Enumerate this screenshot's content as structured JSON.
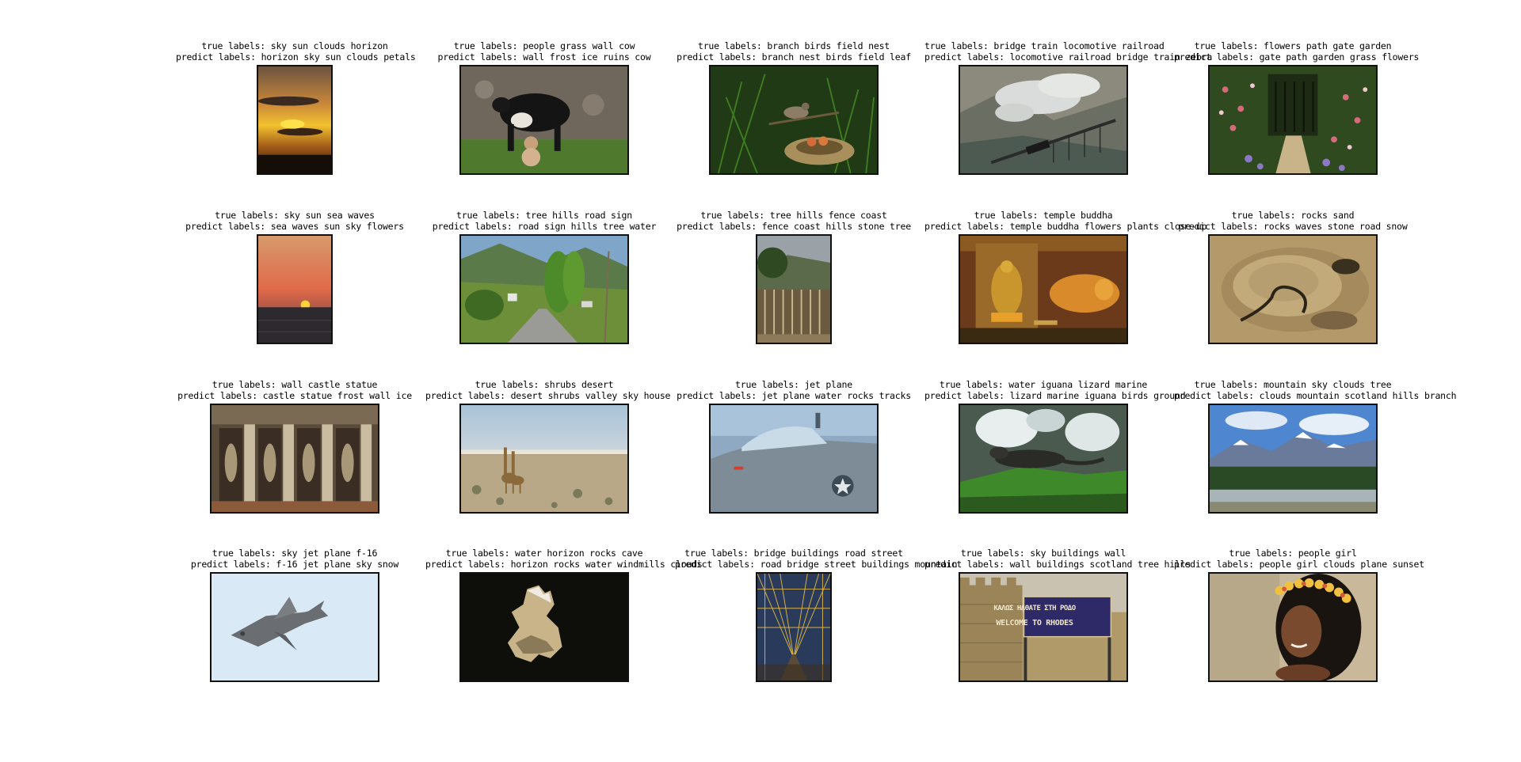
{
  "figure": {
    "cells": [
      {
        "true_labels": "true labels: sky sun clouds horizon",
        "predict_labels": "predict labels: horizon sky sun clouds petals",
        "scene": "sunset-clouds-scene"
      },
      {
        "true_labels": "true labels: people grass wall cow",
        "predict_labels": "predict labels: wall frost ice ruins cow",
        "scene": "cow-milking-scene"
      },
      {
        "true_labels": "true labels: branch birds field nest",
        "predict_labels": "predict labels: branch nest birds field leaf",
        "scene": "bird-nest-scene"
      },
      {
        "true_labels": "true labels: bridge train locomotive railroad",
        "predict_labels": "predict labels: locomotive railroad bridge train zebra",
        "scene": "steam-train-bridge-scene"
      },
      {
        "true_labels": "true labels: flowers path gate garden",
        "predict_labels": "predict labels: gate path garden grass flowers",
        "scene": "garden-gate-scene"
      },
      {
        "true_labels": "true labels: sky sun sea waves",
        "predict_labels": "predict labels: sea waves sun sky flowers",
        "scene": "sea-sunset-scene"
      },
      {
        "true_labels": "true labels: tree hills road sign",
        "predict_labels": "predict labels: road sign hills tree water",
        "scene": "country-road-scene"
      },
      {
        "true_labels": "true labels: tree hills fence coast",
        "predict_labels": "predict labels: fence coast hills stone tree",
        "scene": "fence-coast-scene"
      },
      {
        "true_labels": "true labels: temple buddha",
        "predict_labels": "predict labels: temple buddha flowers plants close-up",
        "scene": "buddha-temple-scene"
      },
      {
        "true_labels": "true labels: rocks sand",
        "predict_labels": "predict labels: rocks waves stone road snow",
        "scene": "sand-rocks-scene"
      },
      {
        "true_labels": "true labels: wall castle statue",
        "predict_labels": "predict labels: castle statue frost wall ice",
        "scene": "castle-statues-scene"
      },
      {
        "true_labels": "true labels: shrubs desert",
        "predict_labels": "predict labels: desert shrubs valley sky house",
        "scene": "giraffes-desert-scene"
      },
      {
        "true_labels": "true labels: jet plane",
        "predict_labels": "predict labels: jet plane water rocks tracks",
        "scene": "jet-cockpit-scene"
      },
      {
        "true_labels": "true labels: water iguana lizard marine",
        "predict_labels": "predict labels: lizard marine iguana birds ground",
        "scene": "marine-iguana-scene"
      },
      {
        "true_labels": "true labels: mountain sky clouds tree",
        "predict_labels": "predict labels: clouds mountain scotland hills branch",
        "scene": "mountain-forest-scene"
      },
      {
        "true_labels": "true labels: sky jet plane f-16",
        "predict_labels": "predict labels: f-16 jet plane sky snow",
        "scene": "f16-sky-scene"
      },
      {
        "true_labels": "true labels: water horizon rocks cave",
        "predict_labels": "predict labels: horizon rocks water windmills clouds",
        "scene": "cave-opening-scene"
      },
      {
        "true_labels": "true labels: bridge buildings road street",
        "predict_labels": "predict labels: road bridge street buildings mountain",
        "scene": "suspension-bridge-scene"
      },
      {
        "true_labels": "true labels: sky buildings wall",
        "predict_labels": "predict labels: wall buildings scotland tree hills",
        "scene": "rhodes-sign-scene"
      },
      {
        "true_labels": "true labels: people girl",
        "predict_labels": "predict labels: people girl clouds plane sunset",
        "scene": "girl-flowers-scene"
      }
    ],
    "sign_text_line1": "ΚΑΛΩΣ ΗΛΘΑΤΕ ΣΤΗ ΡΟΔΟ",
    "sign_text_line2": "WELCOME TO RHODES"
  }
}
